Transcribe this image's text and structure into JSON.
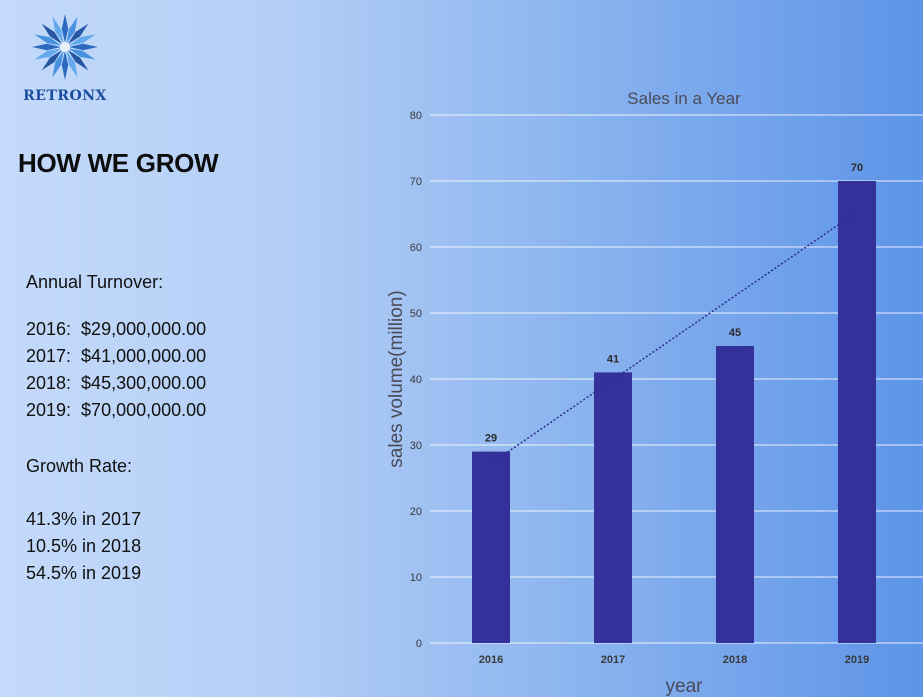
{
  "brand": {
    "name": "RETRONX",
    "logo_icon": "star-burst-icon",
    "color": "#1d4e9e"
  },
  "page": {
    "heading": "HOW WE GROW"
  },
  "turnover": {
    "label": "Annual Turnover:",
    "items": [
      "2016:  $29,000,000.00",
      "2017:  $41,000,000.00",
      "2018:  $45,300,000.00",
      "2019:  $70,000,000.00"
    ]
  },
  "growth": {
    "label": "Growth Rate:",
    "items": [
      "41.3% in 2017",
      "10.5% in 2018",
      "54.5% in 2019"
    ]
  },
  "chart_data": {
    "type": "bar",
    "title": "Sales in a Year",
    "xlabel": "year",
    "ylabel": "sales volume(million)",
    "categories": [
      "2016",
      "2017",
      "2018",
      "2019"
    ],
    "values": [
      29,
      41,
      45,
      70
    ],
    "data_labels": [
      "29",
      "41",
      "45",
      "70"
    ],
    "ylim": [
      0,
      80
    ],
    "yticks": [
      0,
      10,
      20,
      30,
      40,
      50,
      60,
      70,
      80
    ],
    "grid": true,
    "trendline": "linear",
    "bar_color": "#35319a",
    "trend_color": "#2e2b8f"
  }
}
